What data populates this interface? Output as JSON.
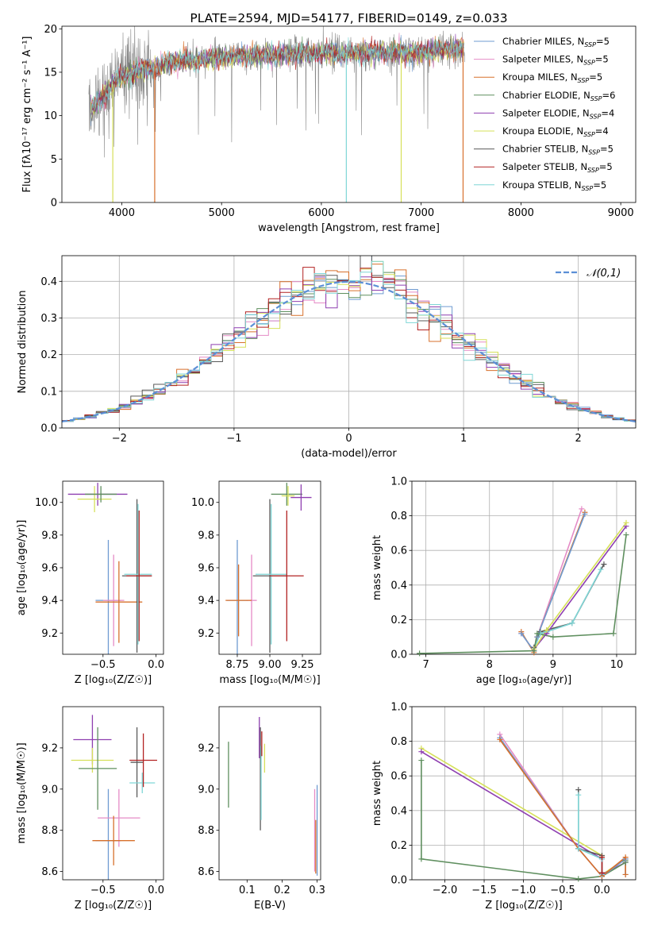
{
  "colors": {
    "chabrier_miles": "#6f9bd1",
    "salpeter_miles": "#e58bc6",
    "kroupa_miles": "#d7702c",
    "chabrier_elodie": "#5f8f5f",
    "salpeter_elodie": "#8e3fb0",
    "kroupa_elodie": "#d6e05a",
    "chabrier_stelib": "#5a5a5a",
    "salpeter_stelib": "#b22222",
    "kroupa_stelib": "#7fd6d6",
    "normal_curve": "#5b8fd6",
    "spectrum_gray": "#888888"
  },
  "chart_data": [
    {
      "id": "spectrum",
      "type": "line",
      "title": "PLATE=2594, MJD=54177, FIBERID=0149, z=0.033",
      "xlabel": "wavelength [Angstrom, rest frame]",
      "ylabel": "Flux [fλ10⁻¹⁷ erg cm⁻² s⁻¹ A⁻¹]",
      "xlim": [
        3400,
        9150
      ],
      "ylim": [
        0,
        20.3
      ],
      "xticks": [
        4000,
        5000,
        6000,
        7000,
        8000,
        9000
      ],
      "yticks": [
        0,
        5,
        10,
        15,
        20
      ],
      "legend_position": "top-right",
      "legend": [
        {
          "label": "Chabrier MILES, N",
          "sub": "SSP",
          "suffix": "=5",
          "color_key": "chabrier_miles"
        },
        {
          "label": "Salpeter MILES, N",
          "sub": "SSP",
          "suffix": "=5",
          "color_key": "salpeter_miles"
        },
        {
          "label": "Kroupa MILES, N",
          "sub": "SSP",
          "suffix": "=5",
          "color_key": "kroupa_miles"
        },
        {
          "label": "Chabrier ELODIE, N",
          "sub": "SSP",
          "suffix": "=6",
          "color_key": "chabrier_elodie"
        },
        {
          "label": "Salpeter ELODIE, N",
          "sub": "SSP",
          "suffix": "=4",
          "color_key": "salpeter_elodie"
        },
        {
          "label": "Kroupa ELODIE, N",
          "sub": "SSP",
          "suffix": "=4",
          "color_key": "kroupa_elodie"
        },
        {
          "label": "Chabrier STELIB, N",
          "sub": "SSP",
          "suffix": "=5",
          "color_key": "chabrier_stelib"
        },
        {
          "label": "Salpeter STELIB, N",
          "sub": "SSP",
          "suffix": "=5",
          "color_key": "salpeter_stelib"
        },
        {
          "label": "Kroupa STELIB, N",
          "sub": "SSP",
          "suffix": "=5",
          "color_key": "kroupa_stelib"
        }
      ],
      "data_start_wavelength": 3670,
      "data_end_wavelength": 7440,
      "model_end_wavelength": 7430,
      "continuum": [
        [
          3670,
          10.5
        ],
        [
          3800,
          12.0
        ],
        [
          3950,
          14.2
        ],
        [
          4100,
          14.9
        ],
        [
          4300,
          15.5
        ],
        [
          4600,
          16.3
        ],
        [
          5000,
          16.7
        ],
        [
          5500,
          17.0
        ],
        [
          6000,
          17.2
        ],
        [
          6500,
          17.2
        ],
        [
          7000,
          17.3
        ],
        [
          7420,
          17.8
        ]
      ],
      "dropouts": [
        {
          "x": 3910,
          "to": 0,
          "series": "kroupa_elodie"
        },
        {
          "x": 4330,
          "to": 0,
          "series": "kroupa_miles"
        },
        {
          "x": 6250,
          "to": 0,
          "series": "kroupa_stelib"
        },
        {
          "x": 6800,
          "to": 0,
          "series": "kroupa_elodie"
        },
        {
          "x": 7420,
          "to": 0,
          "series": "kroupa_miles"
        }
      ]
    },
    {
      "id": "residuals",
      "type": "line",
      "xlabel": "(data-model)/error",
      "ylabel": "Normed distribution",
      "xlim": [
        -2.5,
        2.5
      ],
      "ylim": [
        0,
        0.47
      ],
      "xticks": [
        -2,
        -1,
        0,
        1,
        2
      ],
      "xtick_labels": [
        "−2",
        "−1",
        "0",
        "1",
        "2"
      ],
      "yticks": [
        0.0,
        0.1,
        0.2,
        0.3,
        0.4
      ],
      "ytick_labels": [
        "0.0",
        "0.1",
        "0.2",
        "0.3",
        "0.4"
      ],
      "grid": true,
      "legend_position": "top-right",
      "legend_label": "𝒩(0,1)",
      "bin_width": 0.1
    },
    {
      "id": "age_vs_Z",
      "type": "scatter",
      "xlabel": "Z [log₁₀(Z/Z☉)]",
      "ylabel": "age  [log₁₀(age/yr)]",
      "xlim": [
        -0.88,
        0.07
      ],
      "ylim": [
        9.07,
        10.13
      ],
      "xticks": [
        -0.5,
        0.0
      ],
      "xtick_labels": [
        "−0.5",
        "0.0"
      ],
      "yticks": [
        9.2,
        9.4,
        9.6,
        9.8,
        10.0
      ],
      "points": [
        {
          "x": -0.55,
          "y": 10.05,
          "xerr": 0.28,
          "yerr": 0.07,
          "color_key": "salpeter_elodie"
        },
        {
          "x": -0.58,
          "y": 10.02,
          "xerr": 0.16,
          "yerr": 0.08,
          "color_key": "kroupa_elodie"
        },
        {
          "x": -0.52,
          "y": 10.05,
          "xerr": 0.15,
          "yerr": 0.05,
          "color_key": "chabrier_elodie"
        },
        {
          "x": -0.45,
          "y": 9.4,
          "xerr": 0.12,
          "yerr": 0.37,
          "color_key": "chabrier_miles"
        },
        {
          "x": -0.4,
          "y": 9.4,
          "xerr": 0.1,
          "yerr": 0.28,
          "color_key": "salpeter_miles"
        },
        {
          "x": -0.35,
          "y": 9.39,
          "xerr": 0.22,
          "yerr": 0.25,
          "color_key": "kroupa_miles"
        },
        {
          "x": -0.18,
          "y": 9.55,
          "xerr": 0.14,
          "yerr": 0.47,
          "color_key": "chabrier_stelib"
        },
        {
          "x": -0.17,
          "y": 9.56,
          "xerr": 0.13,
          "yerr": 0.43,
          "color_key": "kroupa_stelib"
        },
        {
          "x": -0.16,
          "y": 9.55,
          "xerr": 0.12,
          "yerr": 0.4,
          "color_key": "salpeter_stelib"
        }
      ]
    },
    {
      "id": "age_vs_mass",
      "type": "scatter",
      "xlabel": "mass [log₁₀(M/M☉)]",
      "ylabel": "",
      "xlim": [
        8.61,
        9.39
      ],
      "ylim": [
        9.07,
        10.13
      ],
      "xticks": [
        8.75,
        9.0,
        9.25
      ],
      "xtick_labels": [
        "8.75",
        "9.00",
        "9.25"
      ],
      "yticks": [
        9.2,
        9.4,
        9.6,
        9.8,
        10.0
      ],
      "points": [
        {
          "x": 9.13,
          "y": 10.05,
          "xerr": 0.12,
          "yerr": 0.07,
          "color_key": "chabrier_elodie"
        },
        {
          "x": 9.24,
          "y": 10.03,
          "xerr": 0.08,
          "yerr": 0.08,
          "color_key": "salpeter_elodie"
        },
        {
          "x": 9.14,
          "y": 10.04,
          "xerr": 0.05,
          "yerr": 0.06,
          "color_key": "kroupa_elodie"
        },
        {
          "x": 8.75,
          "y": 9.4,
          "xerr": 0.08,
          "yerr": 0.37,
          "color_key": "chabrier_miles"
        },
        {
          "x": 8.86,
          "y": 9.4,
          "xerr": 0.04,
          "yerr": 0.28,
          "color_key": "salpeter_miles"
        },
        {
          "x": 8.76,
          "y": 9.4,
          "xerr": 0.1,
          "yerr": 0.22,
          "color_key": "kroupa_miles"
        },
        {
          "x": 9.0,
          "y": 9.55,
          "xerr": 0.13,
          "yerr": 0.47,
          "color_key": "chabrier_stelib"
        },
        {
          "x": 9.01,
          "y": 9.56,
          "xerr": 0.12,
          "yerr": 0.43,
          "color_key": "kroupa_stelib"
        },
        {
          "x": 9.13,
          "y": 9.55,
          "xerr": 0.13,
          "yerr": 0.4,
          "color_key": "salpeter_stelib"
        }
      ]
    },
    {
      "id": "weight_vs_age",
      "type": "line",
      "xlabel": "age  [log₁₀(age/yr)]",
      "ylabel": "mass weight",
      "xlim": [
        6.78,
        10.3
      ],
      "ylim": [
        0,
        1.0
      ],
      "xticks": [
        7,
        8,
        9,
        10
      ],
      "yticks": [
        0.0,
        0.2,
        0.4,
        0.6,
        0.8,
        1.0
      ],
      "ytick_labels": [
        "0.0",
        "0.2",
        "0.4",
        "0.6",
        "0.8",
        "1.0"
      ],
      "grid": true,
      "series": [
        {
          "color_key": "salpeter_miles",
          "x": [
            8.5,
            8.7,
            8.75,
            9.45
          ],
          "y": [
            0.12,
            0.02,
            0.1,
            0.84
          ]
        },
        {
          "color_key": "kroupa_miles",
          "x": [
            8.5,
            8.7,
            8.75,
            9.5
          ],
          "y": [
            0.13,
            0.01,
            0.1,
            0.82
          ]
        },
        {
          "color_key": "chabrier_miles",
          "x": [
            8.5,
            8.7,
            8.75,
            9.5
          ],
          "y": [
            0.12,
            0.02,
            0.1,
            0.81
          ]
        },
        {
          "color_key": "chabrier_stelib",
          "x": [
            8.7,
            8.8,
            8.9,
            9.3,
            9.8
          ],
          "y": [
            0.04,
            0.13,
            0.14,
            0.18,
            0.52
          ]
        },
        {
          "color_key": "kroupa_stelib",
          "x": [
            8.7,
            8.8,
            8.9,
            9.3,
            9.75
          ],
          "y": [
            0.03,
            0.12,
            0.13,
            0.18,
            0.49
          ]
        },
        {
          "color_key": "salpeter_elodie",
          "x": [
            8.7,
            8.9,
            10.15
          ],
          "y": [
            0.03,
            0.12,
            0.74
          ]
        },
        {
          "color_key": "kroupa_elodie",
          "x": [
            8.7,
            8.9,
            10.15
          ],
          "y": [
            0.03,
            0.14,
            0.76
          ]
        },
        {
          "color_key": "chabrier_elodie",
          "x": [
            6.9,
            8.7,
            8.75,
            9.0,
            9.95,
            10.15
          ],
          "y": [
            0.005,
            0.02,
            0.12,
            0.1,
            0.12,
            0.69
          ]
        }
      ]
    },
    {
      "id": "mass_vs_Z",
      "type": "scatter",
      "xlabel": "Z [log₁₀(Z/Z☉)]",
      "ylabel": "mass [log₁₀(M/M☉)]",
      "xlim": [
        -0.88,
        0.07
      ],
      "ylim": [
        8.56,
        9.4
      ],
      "xticks": [
        -0.5,
        0.0
      ],
      "xtick_labels": [
        "−0.5",
        "0.0"
      ],
      "yticks": [
        8.6,
        8.8,
        9.0,
        9.2
      ],
      "points": [
        {
          "x": -0.6,
          "y": 9.24,
          "xerr": 0.18,
          "yerr": 0.12,
          "color_key": "salpeter_elodie"
        },
        {
          "x": -0.6,
          "y": 9.14,
          "xerr": 0.2,
          "yerr": 0.06,
          "color_key": "kroupa_elodie"
        },
        {
          "x": -0.55,
          "y": 9.1,
          "xerr": 0.18,
          "yerr": 0.2,
          "color_key": "chabrier_elodie"
        },
        {
          "x": -0.45,
          "y": 8.75,
          "xerr": 0.12,
          "yerr": 0.25,
          "color_key": "chabrier_miles"
        },
        {
          "x": -0.35,
          "y": 8.86,
          "xerr": 0.2,
          "yerr": 0.14,
          "color_key": "salpeter_miles"
        },
        {
          "x": -0.4,
          "y": 8.75,
          "xerr": 0.2,
          "yerr": 0.12,
          "color_key": "kroupa_miles"
        },
        {
          "x": -0.18,
          "y": 9.13,
          "xerr": 0.06,
          "yerr": 0.17,
          "color_key": "chabrier_stelib"
        },
        {
          "x": -0.13,
          "y": 9.03,
          "xerr": 0.12,
          "yerr": 0.05,
          "color_key": "kroupa_stelib"
        },
        {
          "x": -0.12,
          "y": 9.14,
          "xerr": 0.13,
          "yerr": 0.13,
          "color_key": "salpeter_stelib"
        }
      ]
    },
    {
      "id": "mass_vs_ebv",
      "type": "scatter",
      "xlabel": "E(B-V)",
      "ylabel": "",
      "xlim": [
        0.02,
        0.31
      ],
      "ylim": [
        8.56,
        9.4
      ],
      "xticks": [
        0.1,
        0.2,
        0.3
      ],
      "xtick_labels": [
        "0.1",
        "0.2",
        "0.3"
      ],
      "yticks": [
        8.6,
        8.8,
        9.0,
        9.2
      ],
      "points": [
        {
          "x": 0.047,
          "y": 9.07,
          "xerr": 0,
          "yerr": 0.16,
          "color_key": "chabrier_elodie"
        },
        {
          "x": 0.135,
          "y": 9.25,
          "xerr": 0,
          "yerr": 0.1,
          "color_key": "salpeter_elodie"
        },
        {
          "x": 0.15,
          "y": 9.15,
          "xerr": 0,
          "yerr": 0.07,
          "color_key": "kroupa_elodie"
        },
        {
          "x": 0.138,
          "y": 9.05,
          "xerr": 0,
          "yerr": 0.25,
          "color_key": "chabrier_stelib"
        },
        {
          "x": 0.14,
          "y": 9.03,
          "xerr": 0,
          "yerr": 0.18,
          "color_key": "kroupa_stelib"
        },
        {
          "x": 0.142,
          "y": 9.22,
          "xerr": 0,
          "yerr": 0.06,
          "color_key": "salpeter_stelib"
        },
        {
          "x": 0.293,
          "y": 8.8,
          "xerr": 0,
          "yerr": 0.2,
          "color_key": "salpeter_miles"
        },
        {
          "x": 0.296,
          "y": 8.72,
          "xerr": 0,
          "yerr": 0.13,
          "color_key": "kroupa_miles"
        },
        {
          "x": 0.3,
          "y": 8.8,
          "xerr": 0,
          "yerr": 0.22,
          "color_key": "chabrier_miles"
        }
      ]
    },
    {
      "id": "weight_vs_Z",
      "type": "line",
      "xlabel": "Z [log₁₀(Z/Z☉)]",
      "ylabel": "mass weight",
      "xlim": [
        -2.42,
        0.43
      ],
      "ylim": [
        0,
        1.0
      ],
      "xticks": [
        -2.0,
        -1.5,
        -1.0,
        -0.5,
        0.0
      ],
      "xtick_labels": [
        "−2.0",
        "−1.5",
        "−1.0",
        "−0.5",
        "0.0"
      ],
      "yticks": [
        0.0,
        0.2,
        0.4,
        0.6,
        0.8,
        1.0
      ],
      "ytick_labels": [
        "0.0",
        "0.2",
        "0.4",
        "0.6",
        "0.8",
        "1.0"
      ],
      "grid": true,
      "series": [
        {
          "color_key": "kroupa_elodie",
          "x": [
            -2.3,
            0.0,
            0.0,
            0.3
          ],
          "y": [
            0.76,
            0.14,
            0.03,
            0.12
          ]
        },
        {
          "color_key": "salpeter_elodie",
          "x": [
            -2.3,
            0.0,
            0.0,
            0.3
          ],
          "y": [
            0.74,
            0.12,
            0.03,
            0.1
          ]
        },
        {
          "color_key": "chabrier_elodie",
          "x": [
            -2.3,
            -2.3,
            -0.3,
            0.0,
            0.3,
            0.3
          ],
          "y": [
            0.69,
            0.12,
            0.005,
            0.02,
            0.1,
            0.11
          ]
        },
        {
          "color_key": "salpeter_miles",
          "x": [
            -1.3,
            -0.3,
            0.0,
            0.3
          ],
          "y": [
            0.84,
            0.18,
            0.02,
            0.12
          ]
        },
        {
          "color_key": "chabrier_miles",
          "x": [
            -1.3,
            -0.3,
            0.0,
            0.3,
            0.3
          ],
          "y": [
            0.82,
            0.18,
            0.02,
            0.12,
            0.03
          ]
        },
        {
          "color_key": "kroupa_miles",
          "x": [
            -1.3,
            -0.3,
            0.0,
            0.3,
            0.3
          ],
          "y": [
            0.81,
            0.18,
            0.02,
            0.13,
            0.03
          ]
        },
        {
          "color_key": "chabrier_stelib",
          "x": [
            -0.3,
            -0.3,
            0.0,
            0.0
          ],
          "y": [
            0.52,
            0.18,
            0.14,
            0.04
          ]
        },
        {
          "color_key": "kroupa_stelib",
          "x": [
            -0.3,
            -0.3,
            0.0,
            0.0
          ],
          "y": [
            0.49,
            0.18,
            0.12,
            0.03
          ]
        },
        {
          "color_key": "salpeter_stelib",
          "x": [
            0.0,
            0.0
          ],
          "y": [
            0.13,
            0.04
          ]
        }
      ]
    }
  ]
}
